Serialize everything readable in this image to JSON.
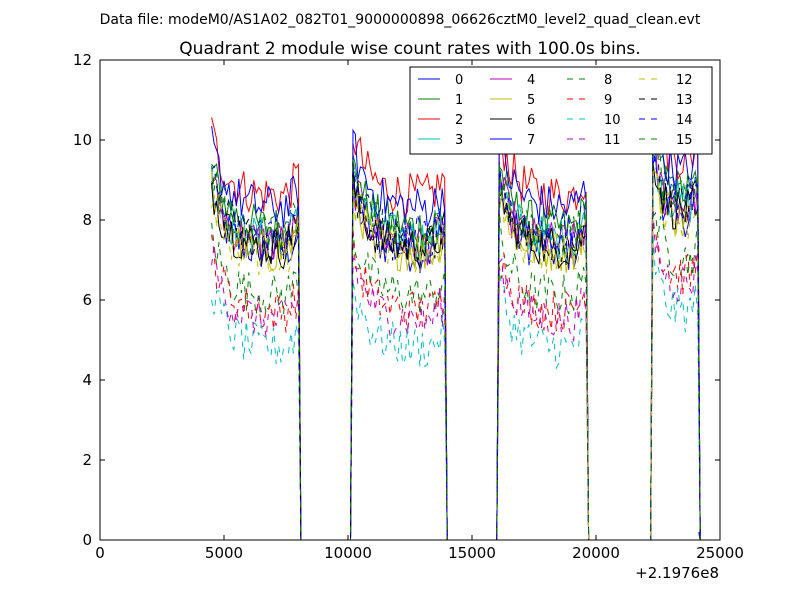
{
  "chart_data": {
    "type": "line",
    "suptitle": "Data file: modeM0/AS1A02_082T01_9000000898_06626cztM0_level2_quad_clean.evt",
    "title": "Quadrant 2 module wise count rates with 100.0s bins.",
    "xlabel": "",
    "ylabel": "",
    "x_offset_label": "+2.1976e8",
    "xlim": [
      0,
      25000
    ],
    "ylim": [
      0,
      12
    ],
    "xticks": [
      0,
      5000,
      10000,
      15000,
      20000,
      25000
    ],
    "xtick_labels": [
      "0",
      "5000",
      "10000",
      "15000",
      "20000",
      "25000"
    ],
    "yticks": [
      0,
      2,
      4,
      6,
      8,
      10,
      12
    ],
    "ytick_labels": [
      "0",
      "2",
      "4",
      "6",
      "8",
      "10",
      "12"
    ],
    "grid": false,
    "legend_position": "top-right",
    "legend_columns": 4,
    "bin_width_s": 100,
    "segments": [
      {
        "start": 4500,
        "end": 8000
      },
      {
        "start": 10200,
        "end": 13900
      },
      {
        "start": 16100,
        "end": 19600
      },
      {
        "start": 22300,
        "end": 24100
      }
    ],
    "gap_value": 0,
    "series": [
      {
        "name": "0",
        "color": "#0000ff",
        "style": "solid",
        "level": 7.2
      },
      {
        "name": "1",
        "color": "#008000",
        "style": "solid",
        "level": 7.8
      },
      {
        "name": "2",
        "color": "#ff0000",
        "style": "solid",
        "level": 8.6
      },
      {
        "name": "3",
        "color": "#00bfbf",
        "style": "solid",
        "level": 7.5
      },
      {
        "name": "4",
        "color": "#bf00bf",
        "style": "solid",
        "level": 7.4
      },
      {
        "name": "5",
        "color": "#bfbf00",
        "style": "solid",
        "level": 7.2
      },
      {
        "name": "6",
        "color": "#000000",
        "style": "solid",
        "level": 7.3
      },
      {
        "name": "7",
        "color": "#0000ff",
        "style": "solid",
        "level": 8.3
      },
      {
        "name": "8",
        "color": "#008000",
        "style": "dashed",
        "level": 6.1
      },
      {
        "name": "9",
        "color": "#ff0000",
        "style": "dashed",
        "level": 5.7
      },
      {
        "name": "10",
        "color": "#00bfbf",
        "style": "dashed",
        "level": 4.8
      },
      {
        "name": "11",
        "color": "#bf00bf",
        "style": "dashed",
        "level": 5.5
      },
      {
        "name": "12",
        "color": "#bfbf00",
        "style": "dashed",
        "level": 7.1
      },
      {
        "name": "13",
        "color": "#000000",
        "style": "dashed",
        "level": 7.4
      },
      {
        "name": "14",
        "color": "#0000ff",
        "style": "dashed",
        "level": 7.6
      },
      {
        "name": "15",
        "color": "#008000",
        "style": "dashed",
        "level": 7.7
      }
    ]
  }
}
